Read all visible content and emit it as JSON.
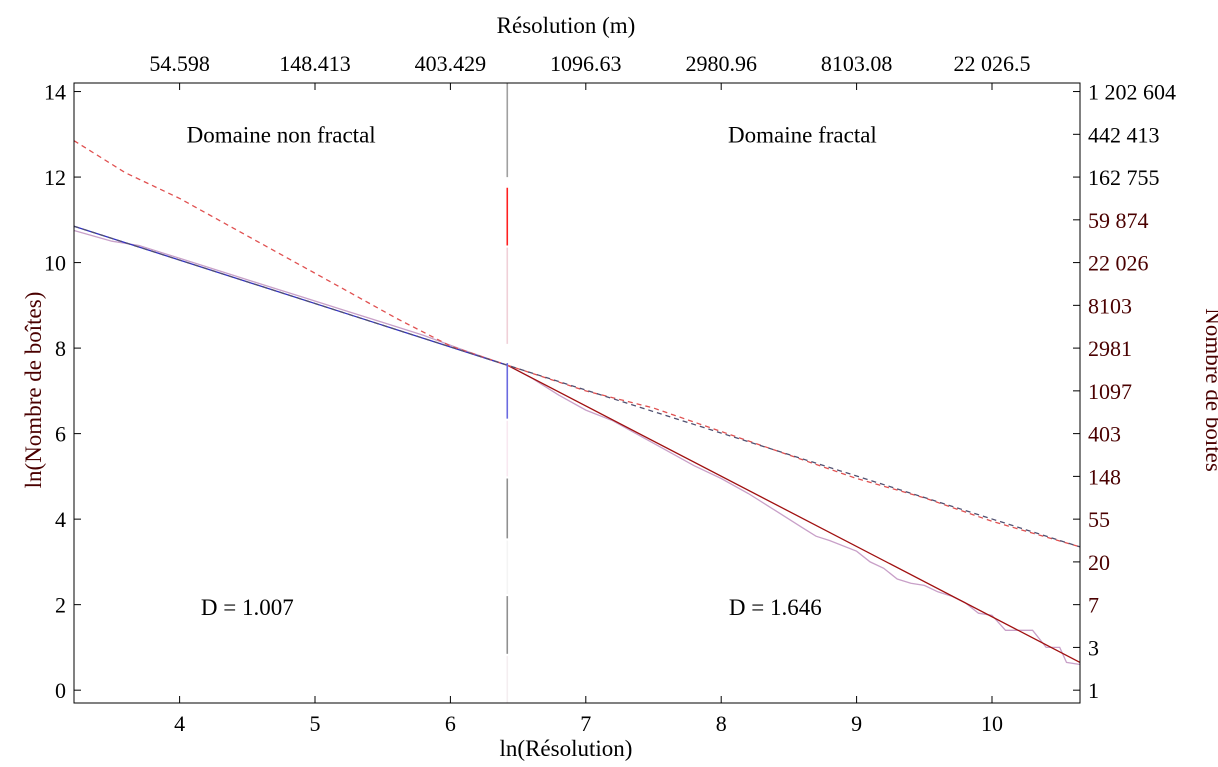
{
  "chart_data": {
    "type": "line",
    "xlabel": "ln(Résolution)",
    "ylabel": "ln(Nombre de boîtes)",
    "top_axis_label": "Résolution (m)",
    "right_axis_label": "Nombre de boîtes",
    "xlim": [
      3.22,
      10.65
    ],
    "ylim": [
      -0.3,
      14.2
    ],
    "x_ticks": [
      4,
      5,
      6,
      7,
      8,
      9,
      10
    ],
    "y_ticks": [
      0,
      2,
      4,
      6,
      8,
      10,
      12,
      14
    ],
    "top_ticks": [
      {
        "x": 4,
        "label": "54.598"
      },
      {
        "x": 5,
        "label": "148.413"
      },
      {
        "x": 6,
        "label": "403.429"
      },
      {
        "x": 7,
        "label": "1096.63"
      },
      {
        "x": 8,
        "label": "2980.96"
      },
      {
        "x": 9,
        "label": "8103.08"
      },
      {
        "x": 10,
        "label": "22 026.5"
      }
    ],
    "right_ticks": [
      {
        "y": 14,
        "label": "1 202 604"
      },
      {
        "y": 13,
        "label": "442 413"
      },
      {
        "y": 12,
        "label": "162 755"
      },
      {
        "y": 11,
        "label": "59 874"
      },
      {
        "y": 10,
        "label": "22 026"
      },
      {
        "y": 9,
        "label": "8103"
      },
      {
        "y": 8,
        "label": "2981"
      },
      {
        "y": 7,
        "label": "1097"
      },
      {
        "y": 6,
        "label": "403"
      },
      {
        "y": 5,
        "label": "148"
      },
      {
        "y": 4,
        "label": "55"
      },
      {
        "y": 3,
        "label": "20"
      },
      {
        "y": 2,
        "label": "7"
      },
      {
        "y": 1,
        "label": "3"
      },
      {
        "y": 0,
        "label": "1"
      }
    ],
    "annotations": [
      {
        "x": 4.75,
        "y": 13.0,
        "text": "Domaine non fractal"
      },
      {
        "x": 8.6,
        "y": 13.0,
        "text": "Domaine fractal"
      },
      {
        "x": 4.5,
        "y": 1.95,
        "text": "D = 1.007"
      },
      {
        "x": 8.4,
        "y": 1.95,
        "text": "D = 1.646"
      }
    ],
    "breakpoint_x": 6.42,
    "series": [
      {
        "color": "#c8a0c8",
        "dash": "none",
        "x": [
          3.22,
          3.5,
          3.7,
          4.0,
          4.3,
          4.6,
          4.9,
          5.2,
          5.5,
          5.8,
          6.1,
          6.42,
          6.6,
          6.8,
          7.0,
          7.2,
          7.4,
          7.6,
          7.8,
          8.0,
          8.2,
          8.4,
          8.6,
          8.7,
          8.8,
          9.0,
          9.1,
          9.2,
          9.3,
          9.4,
          9.5,
          9.6,
          9.7,
          9.8,
          9.9,
          10.0,
          10.1,
          10.2,
          10.3,
          10.4,
          10.5,
          10.55,
          10.65
        ],
        "y": [
          10.75,
          10.5,
          10.4,
          10.1,
          9.8,
          9.5,
          9.2,
          8.9,
          8.6,
          8.3,
          7.95,
          7.6,
          7.3,
          6.9,
          6.55,
          6.3,
          5.95,
          5.6,
          5.25,
          4.95,
          4.6,
          4.2,
          3.8,
          3.6,
          3.5,
          3.25,
          3.0,
          2.85,
          2.6,
          2.5,
          2.45,
          2.3,
          2.2,
          2.05,
          1.8,
          1.75,
          1.4,
          1.4,
          1.4,
          1.0,
          1.0,
          0.65,
          0.6
        ]
      },
      {
        "color": "#3030c0",
        "dash": "none",
        "x": [
          3.22,
          6.42
        ],
        "y": [
          10.85,
          7.6
        ]
      },
      {
        "color": "#a01010",
        "dash": "none",
        "x": [
          6.42,
          10.65
        ],
        "y": [
          7.6,
          0.65
        ]
      },
      {
        "color": "#e05050",
        "dash": "5,4",
        "x": [
          3.22,
          3.6,
          4.0,
          4.4,
          4.8,
          5.2,
          5.6,
          6.0,
          6.42
        ],
        "y": [
          12.85,
          12.1,
          11.5,
          10.8,
          10.1,
          9.4,
          8.7,
          8.05,
          7.6
        ]
      },
      {
        "color": "#e05050",
        "dash": "5,4",
        "x": [
          6.42,
          7.0,
          7.5,
          8.0,
          8.5,
          9.0,
          9.5,
          10.0,
          10.65
        ],
        "y": [
          7.6,
          7.0,
          6.6,
          6.05,
          5.5,
          4.95,
          4.5,
          3.95,
          3.35
        ]
      },
      {
        "color": "#505070",
        "dash": "5,4",
        "x": [
          3.22,
          6.42,
          10.65
        ],
        "y": [
          10.85,
          7.6,
          3.35
        ]
      }
    ]
  }
}
